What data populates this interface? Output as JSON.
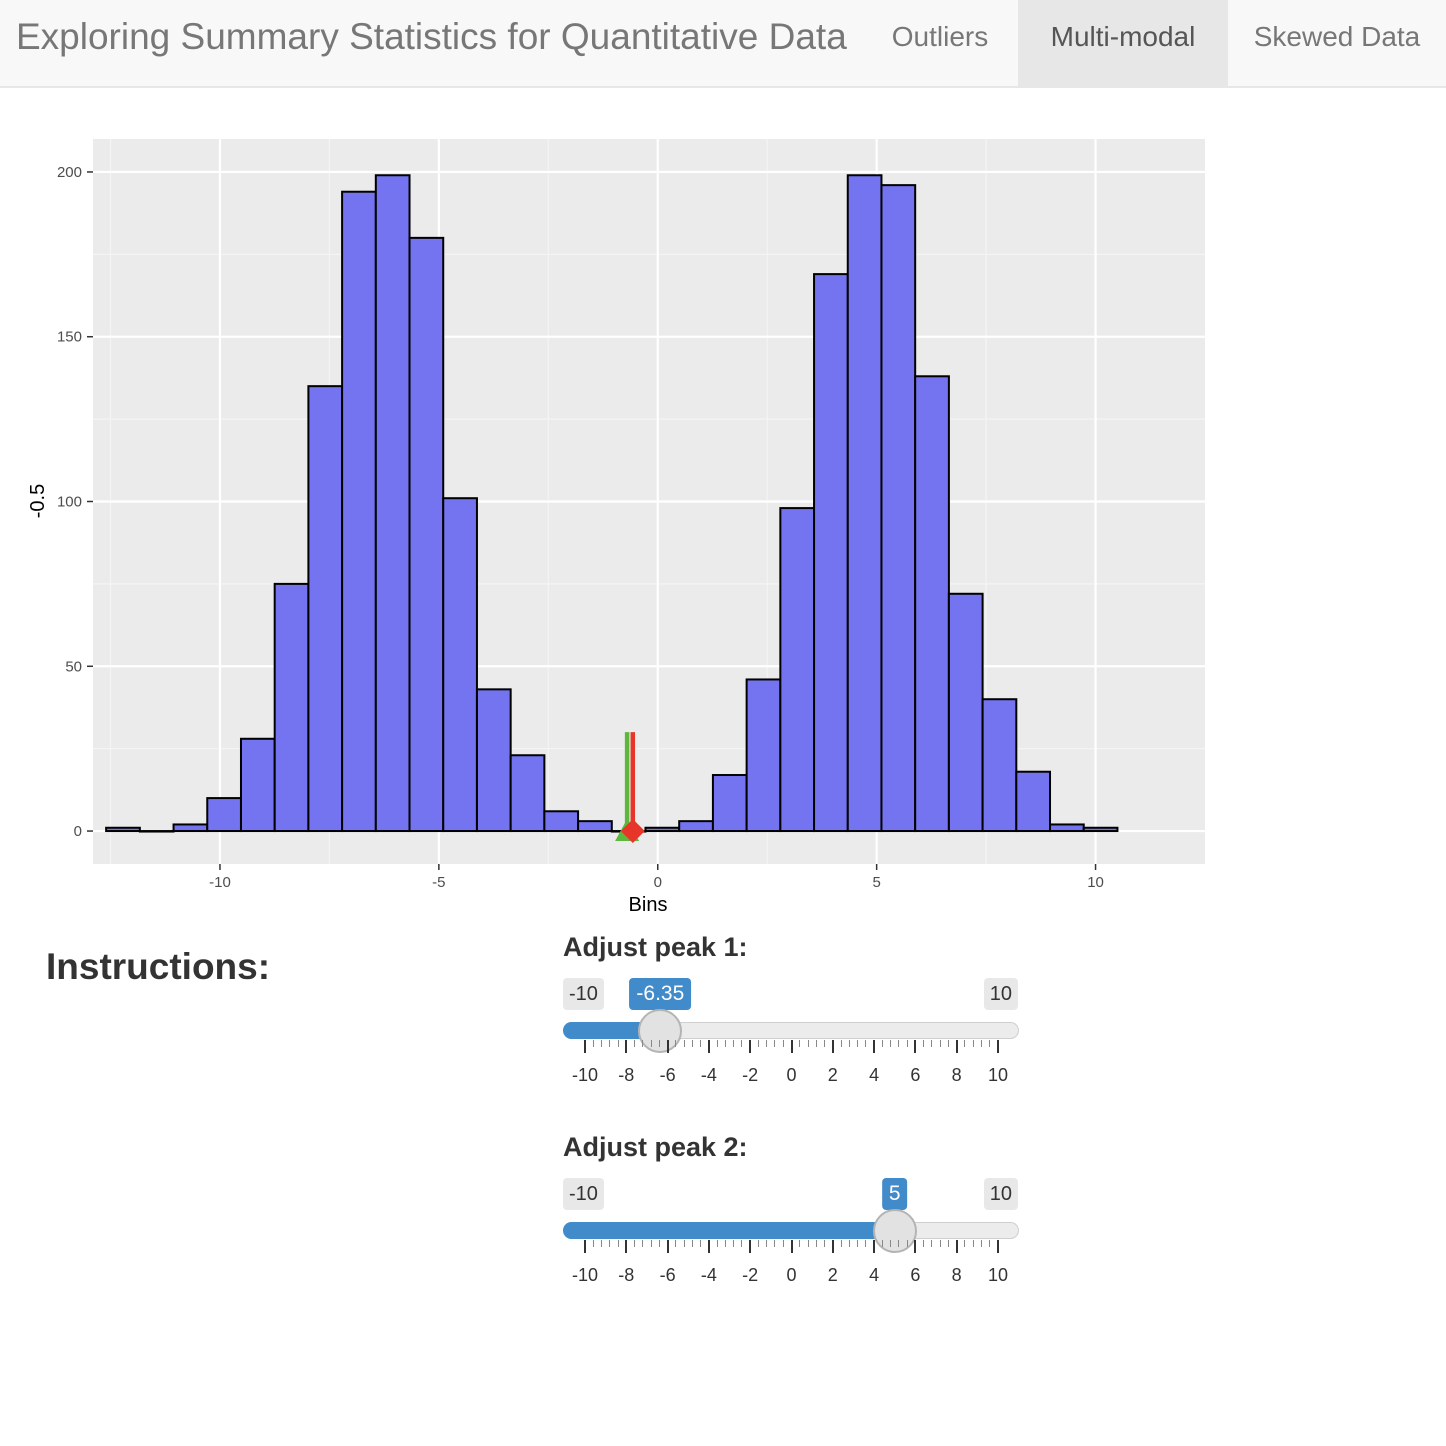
{
  "navbar": {
    "title": "Exploring Summary Statistics for Quantitative Data",
    "tabs": [
      {
        "label": "Outliers",
        "active": false
      },
      {
        "label": "Multi-modal",
        "active": true
      },
      {
        "label": "Skewed Data",
        "active": false
      }
    ]
  },
  "chart_data": {
    "type": "bar",
    "subtype": "histogram",
    "xlabel": "Bins",
    "ylabel": "-0.5",
    "xlim": [
      -12.9,
      12.5
    ],
    "ylim": [
      -10,
      210
    ],
    "x_ticks": [
      -10,
      -5,
      0,
      5,
      10
    ],
    "y_ticks": [
      0,
      50,
      100,
      150,
      200
    ],
    "grid": true,
    "bar_color": "#7474f0",
    "bin_width": 0.77,
    "bins": [
      {
        "x0": -12.6,
        "count": 1
      },
      {
        "x0": -11.83,
        "count": 0
      },
      {
        "x0": -11.06,
        "count": 2
      },
      {
        "x0": -10.29,
        "count": 10
      },
      {
        "x0": -9.52,
        "count": 28
      },
      {
        "x0": -8.75,
        "count": 75
      },
      {
        "x0": -7.98,
        "count": 135
      },
      {
        "x0": -7.21,
        "count": 194
      },
      {
        "x0": -6.44,
        "count": 199
      },
      {
        "x0": -5.67,
        "count": 180
      },
      {
        "x0": -4.9,
        "count": 101
      },
      {
        "x0": -4.13,
        "count": 43
      },
      {
        "x0": -3.36,
        "count": 23
      },
      {
        "x0": -2.59,
        "count": 6
      },
      {
        "x0": -1.82,
        "count": 3
      },
      {
        "x0": -1.05,
        "count": 0
      },
      {
        "x0": -0.28,
        "count": 1
      },
      {
        "x0": 0.49,
        "count": 3
      },
      {
        "x0": 1.26,
        "count": 17
      },
      {
        "x0": 2.03,
        "count": 46
      },
      {
        "x0": 2.8,
        "count": 98
      },
      {
        "x0": 3.57,
        "count": 169
      },
      {
        "x0": 4.34,
        "count": 199
      },
      {
        "x0": 5.11,
        "count": 196
      },
      {
        "x0": 5.88,
        "count": 138
      },
      {
        "x0": 6.65,
        "count": 72
      },
      {
        "x0": 7.42,
        "count": 40
      },
      {
        "x0": 8.19,
        "count": 18
      },
      {
        "x0": 8.96,
        "count": 2
      },
      {
        "x0": 9.73,
        "count": 1
      }
    ],
    "markers": [
      {
        "name": "median",
        "x": -0.7,
        "color": "#5cb83c",
        "shape": "triangle",
        "line_top": 30
      },
      {
        "name": "mean",
        "x": -0.57,
        "color": "#e8352a",
        "shape": "diamond",
        "line_top": 30
      }
    ]
  },
  "instructions": {
    "heading": "Instructions:"
  },
  "sliders": [
    {
      "label": "Adjust peak 1:",
      "min": -10,
      "max": 10,
      "min_text": "-10",
      "max_text": "10",
      "value": -6.35,
      "value_text": "-6.35"
    },
    {
      "label": "Adjust peak 2:",
      "min": -10,
      "max": 10,
      "min_text": "-10",
      "max_text": "10",
      "value": 5,
      "value_text": "5"
    }
  ],
  "slider_tick_labels": [
    "-10",
    "-8",
    "-6",
    "-4",
    "-2",
    "0",
    "2",
    "4",
    "6",
    "8",
    "10"
  ],
  "colors": {
    "slider_accent": "#428bca",
    "panel_bg": "#ebebeb"
  }
}
